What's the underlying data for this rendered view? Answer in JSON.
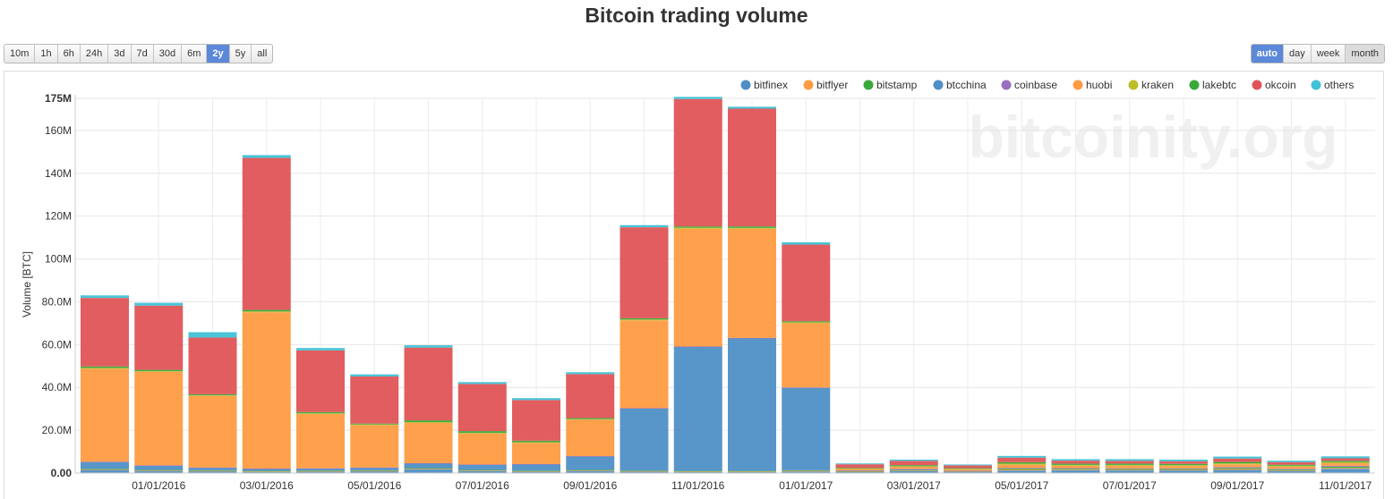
{
  "title": "Bitcoin trading volume",
  "range_buttons": [
    "10m",
    "1h",
    "6h",
    "24h",
    "3d",
    "7d",
    "30d",
    "6m",
    "2y",
    "5y",
    "all"
  ],
  "range_active": "2y",
  "group_buttons": [
    "auto",
    "day",
    "week",
    "month"
  ],
  "group_active": "auto",
  "group_pressed": "month",
  "watermark": "bitcoinity.org",
  "chart_data": {
    "type": "bar",
    "stacked": true,
    "ylabel": "Volume [BTC]",
    "ylim": [
      0,
      175000000
    ],
    "yticks": [
      0,
      20000000,
      40000000,
      60000000,
      80000000,
      100000000,
      120000000,
      140000000,
      160000000,
      175000000
    ],
    "ytick_labels": [
      "0.00",
      "20.0M",
      "40.0M",
      "60.0M",
      "80.0M",
      "100M",
      "120M",
      "140M",
      "160M",
      "175M"
    ],
    "xtick_labels": [
      "01/01/2016",
      "03/01/2016",
      "05/01/2016",
      "07/01/2016",
      "09/01/2016",
      "11/01/2016",
      "01/01/2017",
      "03/01/2017",
      "05/01/2017",
      "07/01/2017",
      "09/01/2017",
      "11/01/2017"
    ],
    "grid": true,
    "legend_position": "top-right",
    "categories": [
      "2015-12",
      "2016-01",
      "2016-02",
      "2016-03",
      "2016-04",
      "2016-05",
      "2016-06",
      "2016-07",
      "2016-08",
      "2016-09",
      "2016-10",
      "2016-11",
      "2016-12",
      "2017-01",
      "2017-02",
      "2017-03",
      "2017-04",
      "2017-05",
      "2017-06",
      "2017-07",
      "2017-08",
      "2017-09",
      "2017-10",
      "2017-11"
    ],
    "series": [
      {
        "name": "bitfinex",
        "color": "#4f8fc6",
        "values": [
          1500000,
          1000000,
          800000,
          500000,
          700000,
          800000,
          1800000,
          1000000,
          700000,
          1000000,
          700000,
          500000,
          500000,
          700000,
          600000,
          900000,
          700000,
          1200000,
          1300000,
          1200000,
          1200000,
          1500000,
          1000000,
          2000000
        ]
      },
      {
        "name": "bitflyer",
        "color": "#ff9b42",
        "values": [
          200000,
          200000,
          200000,
          200000,
          200000,
          200000,
          200000,
          200000,
          200000,
          200000,
          200000,
          200000,
          200000,
          300000,
          100000,
          200000,
          100000,
          400000,
          300000,
          300000,
          300000,
          400000,
          300000,
          400000
        ]
      },
      {
        "name": "bitstamp",
        "color": "#3aa83a",
        "values": [
          300000,
          300000,
          300000,
          300000,
          300000,
          300000,
          300000,
          300000,
          300000,
          300000,
          300000,
          300000,
          300000,
          300000,
          200000,
          300000,
          200000,
          500000,
          400000,
          400000,
          400000,
          500000,
          400000,
          600000
        ]
      },
      {
        "name": "btcchina",
        "color": "#4f8fc6",
        "values": [
          3200000,
          2000000,
          1200000,
          1000000,
          900000,
          1200000,
          2200000,
          2400000,
          2900000,
          6300000,
          29000000,
          58000000,
          62000000,
          38500000,
          200000,
          300000,
          0,
          0,
          0,
          0,
          0,
          0,
          0,
          0
        ]
      },
      {
        "name": "coinbase",
        "color": "#9b6fc0",
        "values": [
          100000,
          100000,
          100000,
          100000,
          100000,
          100000,
          100000,
          100000,
          100000,
          100000,
          100000,
          100000,
          100000,
          200000,
          100000,
          200000,
          100000,
          300000,
          300000,
          300000,
          300000,
          400000,
          300000,
          400000
        ]
      },
      {
        "name": "huobi",
        "color": "#ff9b42",
        "values": [
          43400000,
          43700000,
          33400000,
          73000000,
          25400000,
          19800000,
          18800000,
          14500000,
          9900000,
          17000000,
          41000000,
          55000000,
          51000000,
          30000000,
          700000,
          1000000,
          700000,
          1500000,
          1100000,
          1200000,
          1100000,
          1300000,
          1000000,
          1200000
        ]
      },
      {
        "name": "kraken",
        "color": "#bdbd2a",
        "values": [
          400000,
          300000,
          300000,
          400000,
          300000,
          300000,
          400000,
          300000,
          300000,
          300000,
          400000,
          500000,
          400000,
          400000,
          200000,
          300000,
          200000,
          500000,
          400000,
          400000,
          400000,
          400000,
          400000,
          500000
        ]
      },
      {
        "name": "lakebtc",
        "color": "#3aa83a",
        "values": [
          700000,
          600000,
          500000,
          700000,
          600000,
          400000,
          800000,
          800000,
          700000,
          500000,
          600000,
          600000,
          700000,
          500000,
          300000,
          500000,
          300000,
          700000,
          600000,
          600000,
          600000,
          700000,
          500000,
          600000
        ]
      },
      {
        "name": "okcoin",
        "color": "#e05456",
        "values": [
          32000000,
          30000000,
          26500000,
          71000000,
          28800000,
          22000000,
          34000000,
          22000000,
          19000000,
          20500000,
          42500000,
          59500000,
          55000000,
          35800000,
          1700000,
          2000000,
          1300000,
          2100000,
          1400000,
          1300000,
          1200000,
          1600000,
          1200000,
          1200000
        ]
      },
      {
        "name": "others",
        "color": "#3fc1d6",
        "values": [
          1200000,
          1300000,
          2500000,
          1300000,
          1100000,
          1000000,
          1100000,
          900000,
          900000,
          900000,
          1000000,
          1000000,
          900000,
          1100000,
          400000,
          600000,
          400000,
          800000,
          700000,
          800000,
          800000,
          900000,
          700000,
          900000
        ]
      }
    ]
  }
}
